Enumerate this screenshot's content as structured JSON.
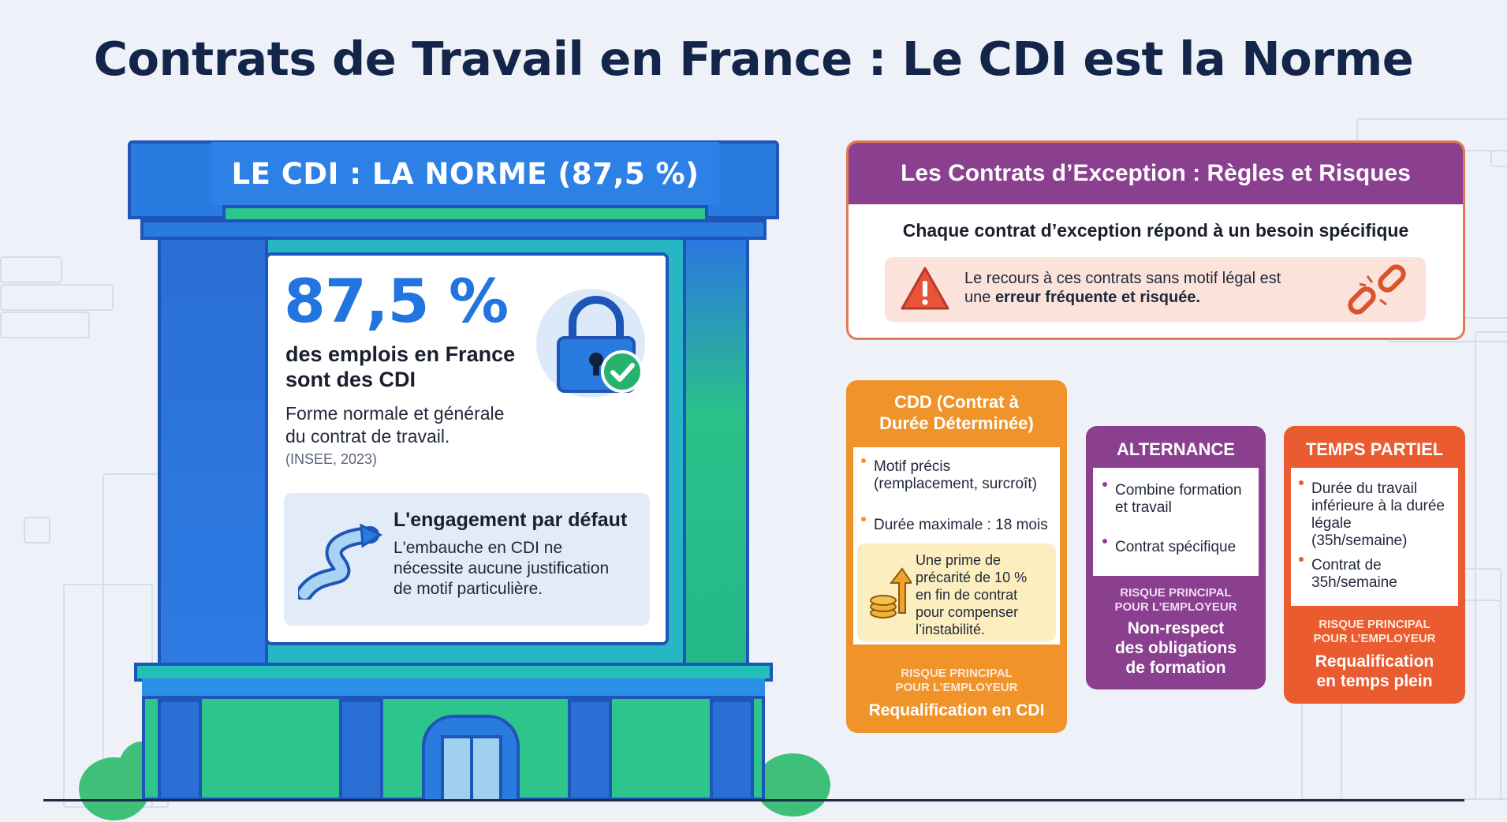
{
  "title": "Contrats de Travail en France : Le CDI est la Norme",
  "cdi": {
    "banner": "LE CDI : LA NORME (87,5 %)",
    "percent": "87,5 %",
    "lead_line1": "des emplois en France",
    "lead_line2": "sont des CDI",
    "desc_line1": "Forme normale et générale",
    "desc_line2": "du contrat de travail.",
    "source": "(INSEE, 2023)",
    "default_title": "L'engagement par défaut",
    "default_line1": "L'embauche en CDI ne",
    "default_line2": "nécessite aucune justification",
    "default_line3": "de motif particulière.",
    "icons": [
      "lock-icon",
      "check-icon",
      "winding-road-icon"
    ]
  },
  "exceptions": {
    "header": "Les Contrats d’Exception : Règles et Risques",
    "subtitle": "Chaque contrat d’exception répond à un besoin spécifique",
    "warning_line1": "Le recours à ces contrats sans motif légal est",
    "warning_prefix": "une ",
    "warning_bold": "erreur fréquente et risquée.",
    "icons": [
      "warning-icon",
      "broken-chain-icon"
    ]
  },
  "cdd": {
    "title_line1": "CDD (Contrat à",
    "title_line2": "Durée Déterminée)",
    "bullet1_line1": "Motif précis",
    "bullet1_line2": "(remplacement, surcroît)",
    "bullet2": "Durée maximale : 18 mois",
    "prime_line1": "Une prime de",
    "prime_line2": "précarité de 10 %",
    "prime_line3": "en fin de contrat",
    "prime_line4": "pour compenser",
    "prime_line5": "l’instabilité.",
    "risk_label_line1": "RISQUE PRINCIPAL",
    "risk_label_line2": "POUR L’EMPLOYEUR",
    "risk_value": "Requalification en CDI",
    "icons": [
      "coins-arrow-icon"
    ]
  },
  "alternance": {
    "title": "ALTERNANCE",
    "bullet1_line1": "Combine formation",
    "bullet1_line2": "et travail",
    "bullet2": "Contrat spécifique",
    "risk_label_line1": "RISQUE PRINCIPAL",
    "risk_label_line2": "POUR L’EMPLOYEUR",
    "risk_value_line1": "Non-respect",
    "risk_value_line2": "des obligations",
    "risk_value_line3": "de formation"
  },
  "temps_partiel": {
    "title": "TEMPS PARTIEL",
    "bullet1_line1": "Durée du travail",
    "bullet1_line2": "inférieure à la durée",
    "bullet1_line3": "légale",
    "bullet1_line4": "(35h/semaine)",
    "bullet2_line1": "Contrat de",
    "bullet2_line2": "35h/semaine",
    "risk_label_line1": "RISQUE PRINCIPAL",
    "risk_label_line2": "POUR L’EMPLOYEUR",
    "risk_value_line1": "Requalification",
    "risk_value_line2": "en temps plein"
  },
  "colors": {
    "title": "#14254a",
    "cdi_blue": "#2274e0",
    "building_green": "#2ec58c",
    "exception_purple": "#8a3f8f",
    "exception_border": "#e37b52",
    "cdd_orange": "#f0942a",
    "alternance_purple": "#8a3f8f",
    "temps_partiel_red": "#ea5b30"
  }
}
